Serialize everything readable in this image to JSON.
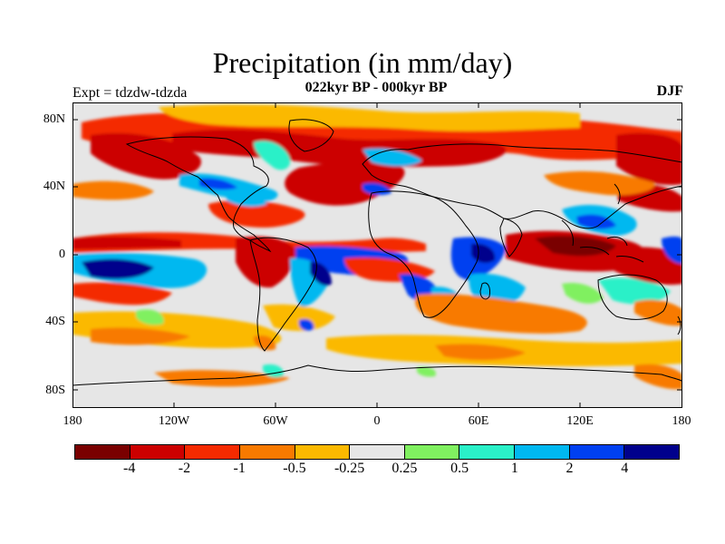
{
  "header": {
    "title": "Precipitation (in mm/day)",
    "subtitle": "022kyr BP - 000kyr BP",
    "experiment": "Expt = tdzdw-tdzda",
    "season": "DJF"
  },
  "axes": {
    "lat_labels": [
      "80N",
      "40N",
      "0",
      "40S",
      "80S"
    ],
    "lon_labels": [
      "180",
      "120W",
      "60W",
      "0",
      "60E",
      "120E",
      "180"
    ]
  },
  "legend": {
    "colors": [
      "#7a0000",
      "#cc0000",
      "#f42a00",
      "#f87a00",
      "#fbb900",
      "#e6e6e6",
      "#80f060",
      "#2af0c8",
      "#00b8f0",
      "#0040f0",
      "#00008c"
    ],
    "labels": [
      "-4",
      "-2",
      "-1",
      "-0.5",
      "-0.25",
      "0.25",
      "0.5",
      "1",
      "2",
      "4"
    ]
  },
  "chart_data": {
    "type": "heatmap",
    "title": "Precipitation (in mm/day)",
    "subtitle": "022kyr BP - 000kyr BP",
    "x_range": [
      -180,
      180
    ],
    "y_range": [
      -90,
      90
    ],
    "contour_levels": [
      -4,
      -2,
      -1,
      -0.5,
      -0.25,
      0.25,
      0.5,
      1,
      2,
      4
    ],
    "units": "mm/day"
  }
}
